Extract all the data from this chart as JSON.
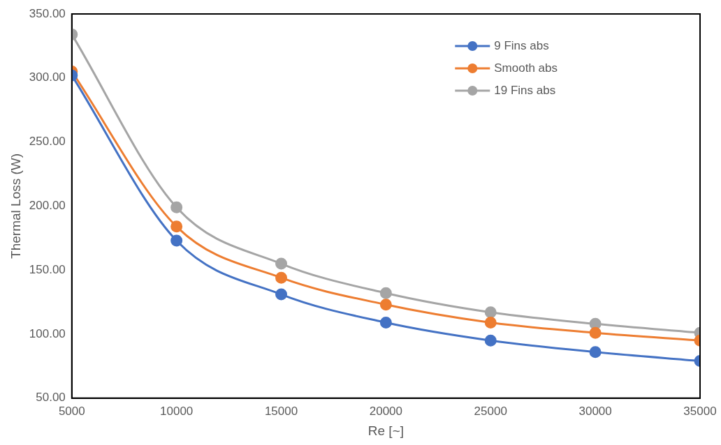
{
  "chart_data": {
    "type": "line",
    "xlabel": "Re [~]",
    "ylabel": "Thermal Loss (W)",
    "x": [
      5000,
      10000,
      15000,
      20000,
      25000,
      30000,
      35000
    ],
    "series": [
      {
        "name": "9 Fins abs",
        "color": "#4472c4",
        "values": [
          302,
          173,
          131,
          109,
          95,
          86,
          79
        ]
      },
      {
        "name": "Smooth abs",
        "color": "#ed7d31",
        "values": [
          305,
          184,
          144,
          123,
          109,
          101,
          95
        ]
      },
      {
        "name": "19 Fins abs",
        "color": "#a5a5a5",
        "values": [
          334,
          199,
          155,
          132,
          117,
          108,
          101
        ]
      }
    ],
    "xlim": [
      5000,
      35000
    ],
    "xticks": [
      5000,
      10000,
      15000,
      20000,
      25000,
      30000,
      35000
    ],
    "ylim": [
      50,
      350
    ],
    "yticks": [
      {
        "value": 50,
        "label": "50.00"
      },
      {
        "value": 100,
        "label": "100.00"
      },
      {
        "value": 150,
        "label": "150.00"
      },
      {
        "value": 200,
        "label": "200.00"
      },
      {
        "value": 250,
        "label": "250.00"
      },
      {
        "value": 300,
        "label": "300.00"
      },
      {
        "value": 350,
        "label": "350.00"
      }
    ],
    "grid": false,
    "legend": "top right",
    "marker": "circle",
    "line_style": "solid"
  }
}
